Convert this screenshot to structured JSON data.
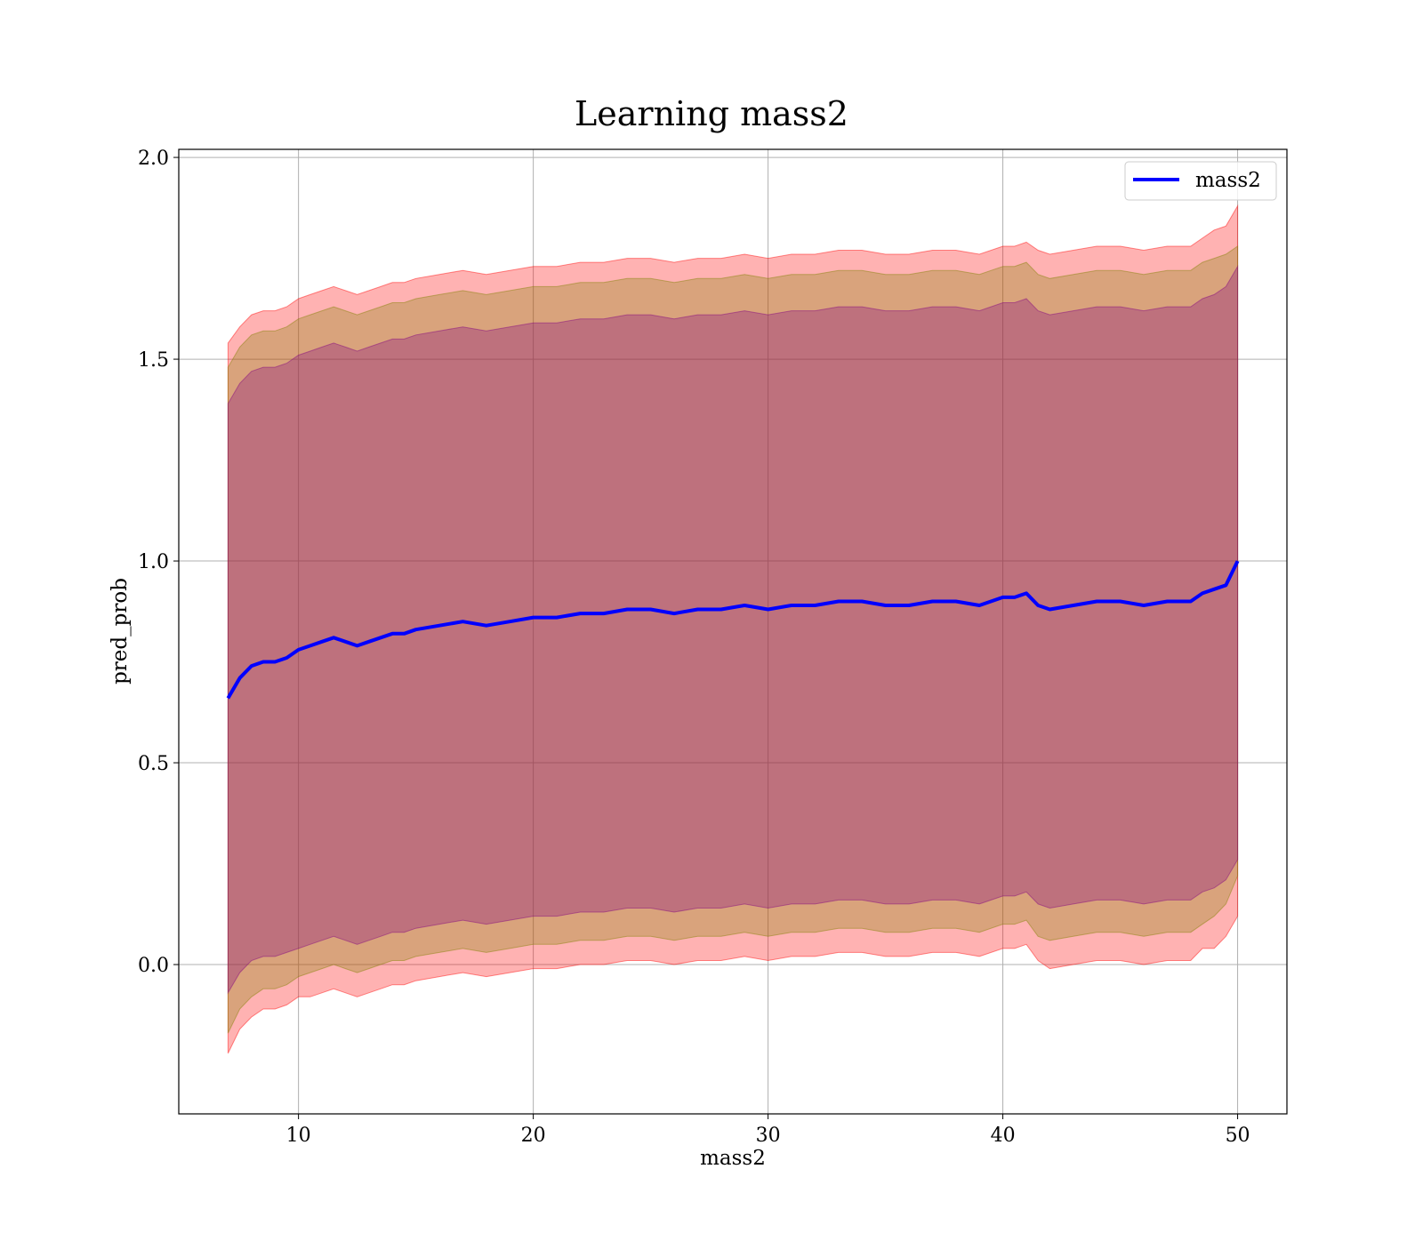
{
  "chart_data": {
    "type": "line",
    "title": "Learning mass2",
    "xlabel": "mass2",
    "ylabel": "pred_prob",
    "xlim": [
      4.9,
      52.1
    ],
    "ylim": [
      -0.37,
      2.02
    ],
    "x_ticks": [
      10,
      20,
      30,
      40,
      50
    ],
    "x_tick_labels": [
      "10",
      "20",
      "30",
      "40",
      "50"
    ],
    "y_ticks": [
      0.0,
      0.5,
      1.0,
      1.5,
      2.0
    ],
    "y_tick_labels": [
      "0.0",
      "0.5",
      "1.0",
      "1.5",
      "2.0"
    ],
    "grid": true,
    "legend": {
      "position": "top-right",
      "entries": [
        "mass2"
      ]
    },
    "x": [
      7.0,
      7.5,
      8,
      8.5,
      9,
      9.5,
      10,
      10.5,
      11,
      11.5,
      12,
      12.5,
      13,
      13.5,
      14,
      14.5,
      15,
      16,
      17,
      18,
      19,
      20,
      21,
      22,
      23,
      24,
      25,
      26,
      27,
      28,
      29,
      30,
      31,
      32,
      33,
      34,
      35,
      36,
      37,
      38,
      39,
      40,
      40.5,
      41,
      41.5,
      42,
      43,
      44,
      45,
      46,
      47,
      47.5,
      48,
      48.5,
      49,
      49.5,
      50
    ],
    "series": [
      {
        "name": "mass2",
        "color": "#0000ff",
        "values": [
          0.66,
          0.71,
          0.74,
          0.75,
          0.75,
          0.76,
          0.78,
          0.79,
          0.8,
          0.81,
          0.8,
          0.79,
          0.8,
          0.81,
          0.82,
          0.82,
          0.83,
          0.84,
          0.85,
          0.84,
          0.85,
          0.86,
          0.86,
          0.87,
          0.87,
          0.88,
          0.88,
          0.87,
          0.88,
          0.88,
          0.89,
          0.88,
          0.89,
          0.89,
          0.9,
          0.9,
          0.89,
          0.89,
          0.9,
          0.9,
          0.89,
          0.91,
          0.91,
          0.92,
          0.89,
          0.88,
          0.89,
          0.9,
          0.9,
          0.89,
          0.9,
          0.9,
          0.9,
          0.92,
          0.93,
          0.94,
          1.0
        ]
      }
    ],
    "bands": [
      {
        "color": "#ff0000",
        "opacity": 0.3,
        "lower": [
          -0.22,
          -0.16,
          -0.13,
          -0.11,
          -0.11,
          -0.1,
          -0.08,
          -0.08,
          -0.07,
          -0.06,
          -0.07,
          -0.08,
          -0.07,
          -0.06,
          -0.05,
          -0.05,
          -0.04,
          -0.03,
          -0.02,
          -0.03,
          -0.02,
          -0.01,
          -0.01,
          0.0,
          0.0,
          0.01,
          0.01,
          0.0,
          0.01,
          0.01,
          0.02,
          0.01,
          0.02,
          0.02,
          0.03,
          0.03,
          0.02,
          0.02,
          0.03,
          0.03,
          0.02,
          0.04,
          0.04,
          0.05,
          0.01,
          -0.01,
          0.0,
          0.01,
          0.01,
          0.0,
          0.01,
          0.01,
          0.01,
          0.04,
          0.04,
          0.07,
          0.12
        ],
        "upper": [
          1.54,
          1.58,
          1.61,
          1.62,
          1.62,
          1.63,
          1.65,
          1.66,
          1.67,
          1.68,
          1.67,
          1.66,
          1.67,
          1.68,
          1.69,
          1.69,
          1.7,
          1.71,
          1.72,
          1.71,
          1.72,
          1.73,
          1.73,
          1.74,
          1.74,
          1.75,
          1.75,
          1.74,
          1.75,
          1.75,
          1.76,
          1.75,
          1.76,
          1.76,
          1.77,
          1.77,
          1.76,
          1.76,
          1.77,
          1.77,
          1.76,
          1.78,
          1.78,
          1.79,
          1.77,
          1.76,
          1.77,
          1.78,
          1.78,
          1.77,
          1.78,
          1.78,
          1.78,
          1.8,
          1.82,
          1.83,
          1.88
        ]
      },
      {
        "color": "#808000",
        "opacity": 0.3,
        "lower": [
          -0.17,
          -0.11,
          -0.08,
          -0.06,
          -0.06,
          -0.05,
          -0.03,
          -0.02,
          -0.01,
          0.0,
          -0.01,
          -0.02,
          -0.01,
          0.0,
          0.01,
          0.01,
          0.02,
          0.03,
          0.04,
          0.03,
          0.04,
          0.05,
          0.05,
          0.06,
          0.06,
          0.07,
          0.07,
          0.06,
          0.07,
          0.07,
          0.08,
          0.07,
          0.08,
          0.08,
          0.09,
          0.09,
          0.08,
          0.08,
          0.09,
          0.09,
          0.08,
          0.1,
          0.1,
          0.11,
          0.07,
          0.06,
          0.07,
          0.08,
          0.08,
          0.07,
          0.08,
          0.08,
          0.08,
          0.1,
          0.12,
          0.15,
          0.22
        ],
        "upper": [
          1.48,
          1.53,
          1.56,
          1.57,
          1.57,
          1.58,
          1.6,
          1.61,
          1.62,
          1.63,
          1.62,
          1.61,
          1.62,
          1.63,
          1.64,
          1.64,
          1.65,
          1.66,
          1.67,
          1.66,
          1.67,
          1.68,
          1.68,
          1.69,
          1.69,
          1.7,
          1.7,
          1.69,
          1.7,
          1.7,
          1.71,
          1.7,
          1.71,
          1.71,
          1.72,
          1.72,
          1.71,
          1.71,
          1.72,
          1.72,
          1.71,
          1.73,
          1.73,
          1.74,
          1.71,
          1.7,
          1.71,
          1.72,
          1.72,
          1.71,
          1.72,
          1.72,
          1.72,
          1.74,
          1.75,
          1.76,
          1.78
        ]
      },
      {
        "color": "#800080",
        "opacity": 0.3,
        "lower": [
          -0.07,
          -0.02,
          0.01,
          0.02,
          0.02,
          0.03,
          0.04,
          0.05,
          0.06,
          0.07,
          0.06,
          0.05,
          0.06,
          0.07,
          0.08,
          0.08,
          0.09,
          0.1,
          0.11,
          0.1,
          0.11,
          0.12,
          0.12,
          0.13,
          0.13,
          0.14,
          0.14,
          0.13,
          0.14,
          0.14,
          0.15,
          0.14,
          0.15,
          0.15,
          0.16,
          0.16,
          0.15,
          0.15,
          0.16,
          0.16,
          0.15,
          0.17,
          0.17,
          0.18,
          0.15,
          0.14,
          0.15,
          0.16,
          0.16,
          0.15,
          0.16,
          0.16,
          0.16,
          0.18,
          0.19,
          0.21,
          0.26
        ],
        "upper": [
          1.39,
          1.44,
          1.47,
          1.48,
          1.48,
          1.49,
          1.51,
          1.52,
          1.53,
          1.54,
          1.53,
          1.52,
          1.53,
          1.54,
          1.55,
          1.55,
          1.56,
          1.57,
          1.58,
          1.57,
          1.58,
          1.59,
          1.59,
          1.6,
          1.6,
          1.61,
          1.61,
          1.6,
          1.61,
          1.61,
          1.62,
          1.61,
          1.62,
          1.62,
          1.63,
          1.63,
          1.62,
          1.62,
          1.63,
          1.63,
          1.62,
          1.64,
          1.64,
          1.65,
          1.62,
          1.61,
          1.62,
          1.63,
          1.63,
          1.62,
          1.63,
          1.63,
          1.63,
          1.65,
          1.66,
          1.68,
          1.73
        ]
      }
    ]
  }
}
